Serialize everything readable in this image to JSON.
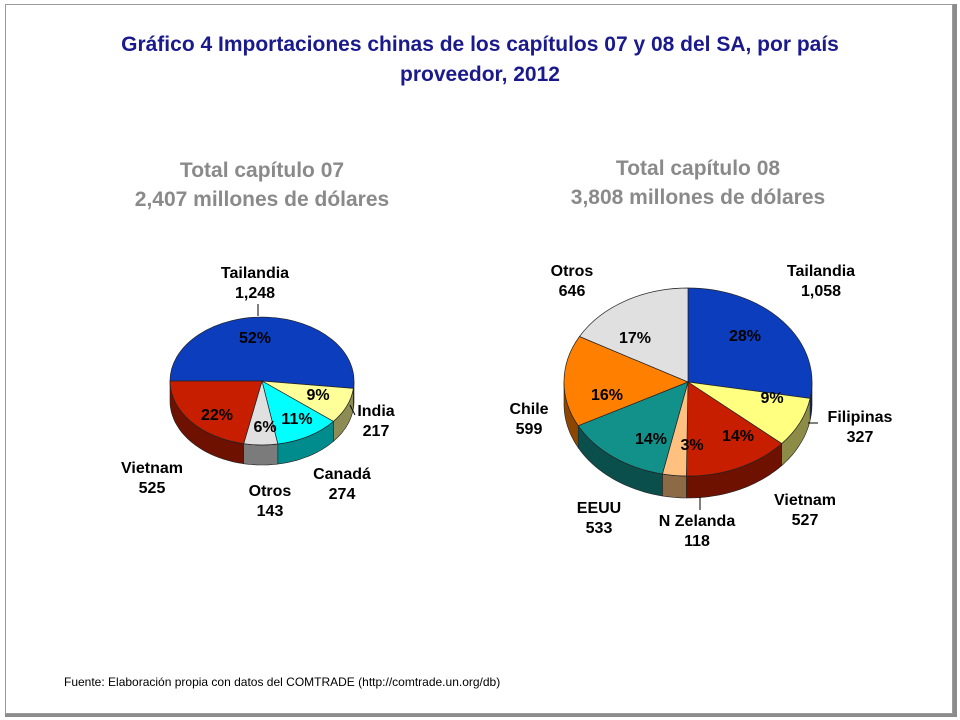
{
  "title_line1": "Gráfico 4 Importaciones chinas de los capítulos 07 y 08 del SA, por país",
  "title_line2": "proveedor, 2012",
  "source": "Fuente: Elaboración propia con datos del COMTRADE (http://comtrade.un.org/db)",
  "colors": {
    "title": "#1a1a8c",
    "subtitle": "#8a8a8a",
    "Tailandia": "#0b3dbd",
    "India": "#ffff99",
    "Filipinas": "#ffff80",
    "Canadá": "#00ffff",
    "Otros_07": "#e0e0e0",
    "Vietnam": "#c81e00",
    "Otros_08": "#e0e0e0",
    "Chile": "#ff8000",
    "EEUU": "#12908a",
    "N Zelanda": "#ffc080"
  },
  "chart_data": [
    {
      "type": "pie",
      "title": "Total capítulo 07",
      "subtitle": "2,407 millones de dólares",
      "categories": [
        "Tailandia",
        "India",
        "Canadá",
        "Otros",
        "Vietnam"
      ],
      "values": [
        1248,
        217,
        274,
        143,
        525
      ],
      "value_labels": [
        "1,248",
        "217",
        "274",
        "143",
        "525"
      ],
      "percent_labels": [
        "52%",
        "9%",
        "11%",
        "6%",
        "22%"
      ],
      "unit": "millones de dólares"
    },
    {
      "type": "pie",
      "title": "Total capítulo 08",
      "subtitle": "3,808 millones de dólares",
      "categories": [
        "Tailandia",
        "Filipinas",
        "Vietnam",
        "N Zelanda",
        "EEUU",
        "Chile",
        "Otros"
      ],
      "values": [
        1058,
        327,
        527,
        118,
        533,
        599,
        646
      ],
      "value_labels": [
        "1,058",
        "327",
        "527",
        "118",
        "533",
        "599",
        "646"
      ],
      "percent_labels": [
        "28%",
        "9%",
        "14%",
        "3%",
        "14%",
        "16%",
        "17%"
      ],
      "unit": "millones de dólares"
    }
  ]
}
